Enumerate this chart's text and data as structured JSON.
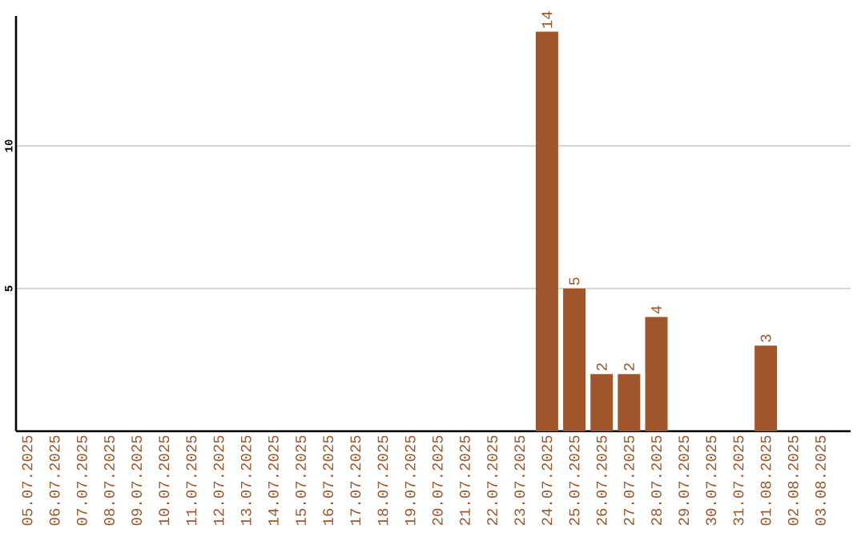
{
  "chart_data": {
    "type": "bar",
    "categories": [
      "05.07.2025",
      "06.07.2025",
      "07.07.2025",
      "08.07.2025",
      "09.07.2025",
      "10.07.2025",
      "11.07.2025",
      "12.07.2025",
      "13.07.2025",
      "14.07.2025",
      "15.07.2025",
      "16.07.2025",
      "17.07.2025",
      "18.07.2025",
      "19.07.2025",
      "20.07.2025",
      "21.07.2025",
      "22.07.2025",
      "23.07.2025",
      "24.07.2025",
      "25.07.2025",
      "26.07.2025",
      "27.07.2025",
      "28.07.2025",
      "29.07.2025",
      "30.07.2025",
      "31.07.2025",
      "01.08.2025",
      "02.08.2025",
      "03.08.2025"
    ],
    "values": [
      0,
      0,
      0,
      0,
      0,
      0,
      0,
      0,
      0,
      0,
      0,
      0,
      0,
      0,
      0,
      0,
      0,
      0,
      0,
      14,
      5,
      2,
      2,
      4,
      0,
      0,
      0,
      3,
      0,
      0
    ],
    "value_labels": [
      null,
      null,
      null,
      null,
      null,
      null,
      null,
      null,
      null,
      null,
      null,
      null,
      null,
      null,
      null,
      null,
      null,
      null,
      null,
      "14",
      "5",
      "2",
      "2",
      "4",
      null,
      null,
      null,
      "3",
      null,
      null
    ],
    "color": "#a0562a",
    "ylim": [
      0,
      14.55
    ],
    "yticks": [
      5,
      10
    ],
    "grid": "y"
  }
}
